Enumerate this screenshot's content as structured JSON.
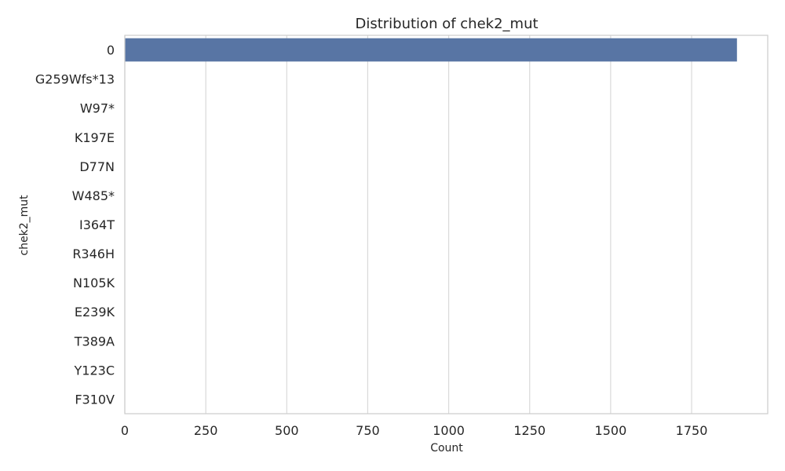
{
  "chart_data": {
    "type": "bar",
    "orientation": "horizontal",
    "title": "Distribution of chek2_mut",
    "xlabel": "Count",
    "ylabel": "chek2_mut",
    "categories": [
      "0",
      "G259Wfs*13",
      "W97*",
      "K197E",
      "D77N",
      "W485*",
      "I364T",
      "R346H",
      "N105K",
      "E239K",
      "T389A",
      "Y123C",
      "F310V"
    ],
    "values": [
      1890,
      1,
      1,
      1,
      1,
      1,
      1,
      1,
      1,
      1,
      1,
      1,
      1
    ],
    "xlim": [
      0,
      1985
    ],
    "xticks": [
      0,
      250,
      500,
      750,
      1000,
      1250,
      1500,
      1750
    ],
    "grid": "vertical",
    "bar_color": "#5875a4",
    "grid_color": "#d9d9d9",
    "spine_color": "#cccccc"
  }
}
